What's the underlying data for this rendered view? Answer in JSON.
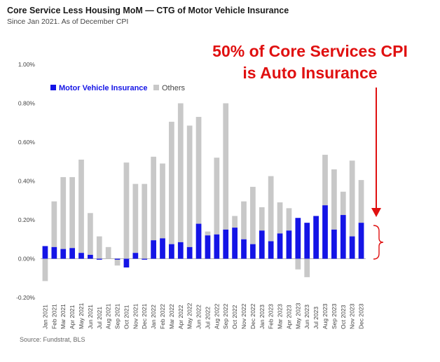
{
  "header": {
    "title": "Core Service Less Housing MoM — CTG of Motor Vehicle Insurance",
    "subtitle": "Since Jan 2021. As of December CPI"
  },
  "callout": {
    "line1": "50% of Core Services CPI",
    "line2": "is Auto Insurance"
  },
  "footer": {
    "source": "Source: Fundstrat, BLS"
  },
  "colors": {
    "insurance": "#1414e6",
    "others": "#c8c8c8",
    "callout": "#e01010"
  },
  "chart_data": {
    "type": "bar",
    "stacked": true,
    "title": "Core Service Less Housing MoM — CTG of Motor Vehicle Insurance",
    "ylim": [
      -0.2,
      1.0
    ],
    "yticks": [
      "-0.20%",
      "0.00%",
      "0.20%",
      "0.40%",
      "0.60%",
      "0.80%",
      "1.00%"
    ],
    "ytick_values": [
      -0.2,
      0.0,
      0.2,
      0.4,
      0.6,
      0.8,
      1.0
    ],
    "legend": "top-left",
    "categories": [
      "Jan 2021",
      "Feb 2021",
      "Mar 2021",
      "Apr 2021",
      "May 2021",
      "Jun 2021",
      "Jul 2021",
      "Aug 2021",
      "Sep 2021",
      "Oct 2021",
      "Nov 2021",
      "Dec 2021",
      "Jan 2022",
      "Feb 2022",
      "Mar 2022",
      "Apr 2022",
      "May 2022",
      "Jun 2022",
      "Jul 2022",
      "Aug 2022",
      "Sep 2022",
      "Oct 2022",
      "Nov 2022",
      "Dec 2022",
      "Jan 2023",
      "Feb 2023",
      "Mar 2023",
      "Apr 2023",
      "May 2023",
      "Jun 2023",
      "Jul 2023",
      "Aug 2023",
      "Sep 2023",
      "Oct 2023",
      "Nov 2023",
      "Dec 2023"
    ],
    "series": [
      {
        "name": "Motor Vehicle Insurance",
        "values": [
          0.065,
          0.06,
          0.05,
          0.055,
          0.03,
          0.02,
          -0.005,
          0.0,
          -0.005,
          -0.045,
          0.03,
          -0.005,
          0.095,
          0.105,
          0.075,
          0.085,
          0.06,
          0.18,
          0.12,
          0.125,
          0.15,
          0.16,
          0.1,
          0.075,
          0.145,
          0.09,
          0.13,
          0.145,
          0.21,
          0.185,
          0.22,
          0.275,
          0.15,
          0.225,
          0.115,
          0.185
        ]
      },
      {
        "name": "Others",
        "values": [
          -0.115,
          0.235,
          0.37,
          0.365,
          0.48,
          0.215,
          0.115,
          0.06,
          -0.03,
          0.495,
          0.355,
          0.385,
          0.43,
          0.385,
          0.63,
          0.715,
          0.625,
          0.55,
          0.02,
          0.395,
          0.65,
          0.06,
          0.195,
          0.295,
          0.12,
          0.335,
          0.16,
          0.115,
          -0.055,
          -0.095,
          0.0,
          0.26,
          0.31,
          0.12,
          0.39,
          0.22
        ]
      }
    ]
  }
}
